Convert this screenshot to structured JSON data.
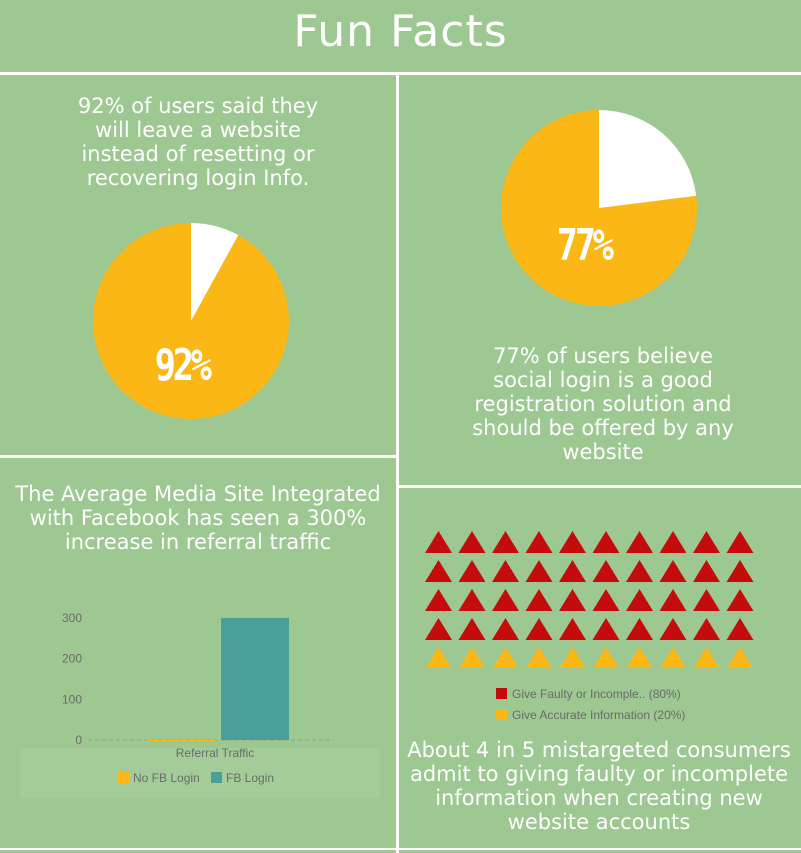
{
  "title": "Fun Facts",
  "panels": {
    "top_left": {
      "caption": "92% of users said they will leave a website instead of resetting or recovering login Info."
    },
    "top_right": {
      "caption": "77% of users believe social login is a good registration solution and should be offered by any website"
    },
    "bottom_left": {
      "caption": "The Average Media Site Integrated with Facebook has seen a 300% increase in referral traffic"
    },
    "bottom_right": {
      "caption": "About 4 in 5 mistargeted consumers admit to giving faulty or incomplete information when creating new website accounts"
    }
  },
  "colors": {
    "background": "#9dc892",
    "accent_yellow": "#fbb716",
    "pie_other": "#ffffff",
    "bar_teal": "#4a9f9b",
    "triangle_red": "#c40c0c"
  },
  "chart_data": [
    {
      "type": "pie",
      "label": "92%",
      "slices": [
        {
          "value": 92,
          "color": "#fbb716"
        },
        {
          "value": 8,
          "color": "#ffffff"
        }
      ]
    },
    {
      "type": "pie",
      "label": "77%",
      "slices": [
        {
          "value": 77,
          "color": "#fbb716"
        },
        {
          "value": 23,
          "color": "#ffffff"
        }
      ]
    },
    {
      "type": "bar",
      "categories": [
        "Referral Traffic"
      ],
      "series": [
        {
          "name": "No FB Login",
          "values": [
            0
          ],
          "color": "#fbb716"
        },
        {
          "name": "FB Login",
          "values": [
            300
          ],
          "color": "#4a9f9b"
        }
      ],
      "ylim": [
        0,
        300
      ],
      "yticks": [
        "0",
        "100",
        "200",
        "300"
      ],
      "legend": "bottom"
    },
    {
      "type": "pictograph",
      "icon": "triangle",
      "total": 50,
      "series": [
        {
          "name": "Give Faulty or Incomple.. (80%)",
          "count": 40,
          "color": "#c40c0c"
        },
        {
          "name": "Give Accurate Information (20%)",
          "count": 10,
          "color": "#fbb716"
        }
      ],
      "legend": "bottom"
    }
  ]
}
